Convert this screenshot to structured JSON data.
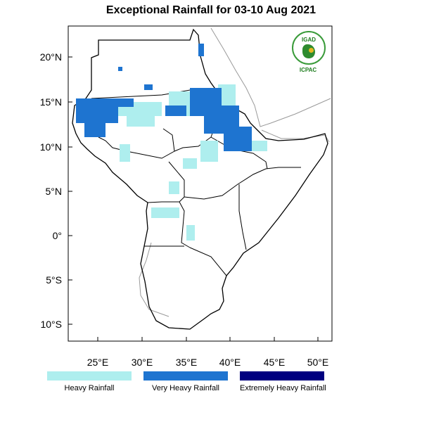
{
  "title": "Exceptional Rainfall for 03-10 Aug 2021",
  "axes": {
    "lat_ticks": [
      "20°N",
      "15°N",
      "10°N",
      "5°N",
      "0°",
      "5°S",
      "10°S"
    ],
    "lon_ticks": [
      "25°E",
      "30°E",
      "35°E",
      "40°E",
      "45°E",
      "50°E"
    ]
  },
  "legend": [
    {
      "label": "Heavy Rainfall",
      "color": "#aeeeee"
    },
    {
      "label": "Very Heavy Rainfall",
      "color": "#1e74d0"
    },
    {
      "label": "Extremely Heavy Rainfall",
      "color": "#000080"
    }
  ],
  "logo": {
    "top_text": "IGAD",
    "bottom_text": "ICPAC"
  }
}
